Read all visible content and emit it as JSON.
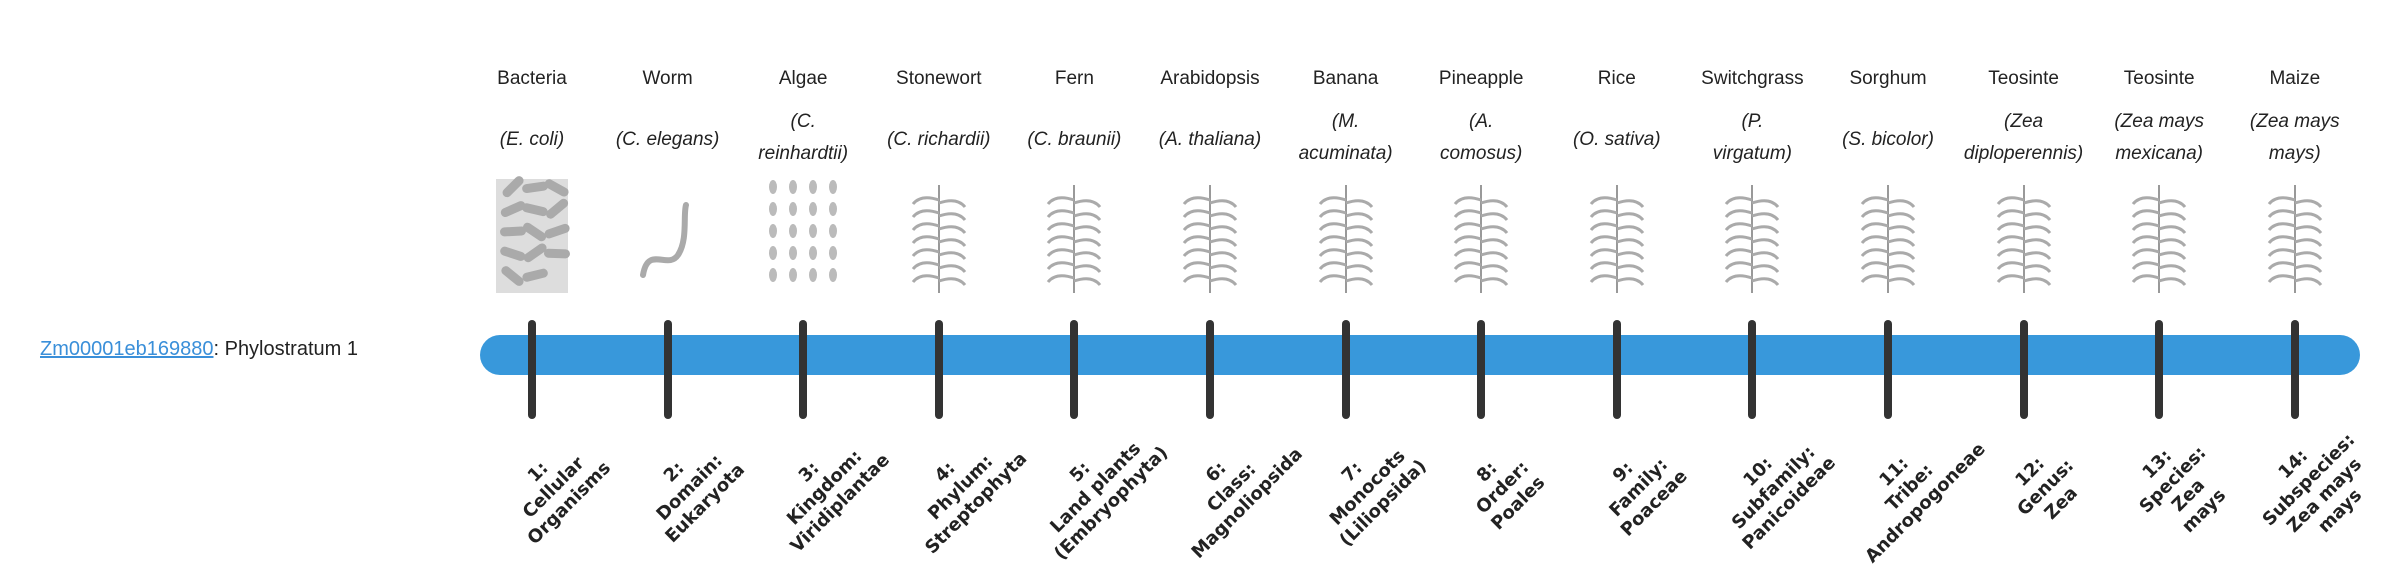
{
  "gene": {
    "id": "Zm00001eb169880",
    "suffix": ": Phylostratum 1"
  },
  "colors": {
    "bar": "#3898db",
    "link": "#3a8fd9",
    "tick": "#333333"
  },
  "strata": [
    {
      "common": "Bacteria",
      "species": "(E. coli)",
      "icon": "bacteria-icon",
      "level": "1:\nCellular\nOrganisms"
    },
    {
      "common": "Worm",
      "species": "(C. elegans)",
      "icon": "worm-icon",
      "level": "2:\nDomain:\nEukaryota"
    },
    {
      "common": "Algae",
      "species": "(C.\nreinhardtii)",
      "icon": "algae-icon",
      "level": "3:\nKingdom:\nViridiplantae"
    },
    {
      "common": "Stonewort",
      "species": "(C. richardii)",
      "icon": "stonewort-icon",
      "level": "4:\nPhylum:\nStreptophyta"
    },
    {
      "common": "Fern",
      "species": "(C. braunii)",
      "icon": "fern-icon",
      "level": "5:\nLand plants\n(Embryophyta)"
    },
    {
      "common": "Arabidopsis",
      "species": "(A. thaliana)",
      "icon": "arabidopsis-icon",
      "level": "6:\nClass:\nMagnoliopsida"
    },
    {
      "common": "Banana",
      "species": "(M.\nacuminata)",
      "icon": "banana-icon",
      "level": "7:\nMonocots\n(Liliopsida)"
    },
    {
      "common": "Pineapple",
      "species": "(A.\ncomosus)",
      "icon": "pineapple-icon",
      "level": "8:\nOrder:\nPoales"
    },
    {
      "common": "Rice",
      "species": "(O. sativa)",
      "icon": "rice-icon",
      "level": "9:\nFamily:\nPoaceae"
    },
    {
      "common": "Switchgrass",
      "species": "(P.\nvirgatum)",
      "icon": "switchgrass-icon",
      "level": "10:\nSubfamily:\nPanicoideae"
    },
    {
      "common": "Sorghum",
      "species": "(S. bicolor)",
      "icon": "sorghum-icon",
      "level": "11:\nTribe:\nAndropogoneae"
    },
    {
      "common": "Teosinte",
      "species": "(Zea\ndiploperennis)",
      "icon": "teosinte-icon",
      "level": "12:\nGenus:\nZea"
    },
    {
      "common": "Teosinte",
      "species": "(Zea mays\nmexicana)",
      "icon": "teosinte-icon",
      "level": "13:\nSpecies:\nZea\nmays"
    },
    {
      "common": "Maize",
      "species": "(Zea mays\nmays)",
      "icon": "maize-icon",
      "level": "14:\nSubspecies:\nZea mays\nmays"
    }
  ]
}
